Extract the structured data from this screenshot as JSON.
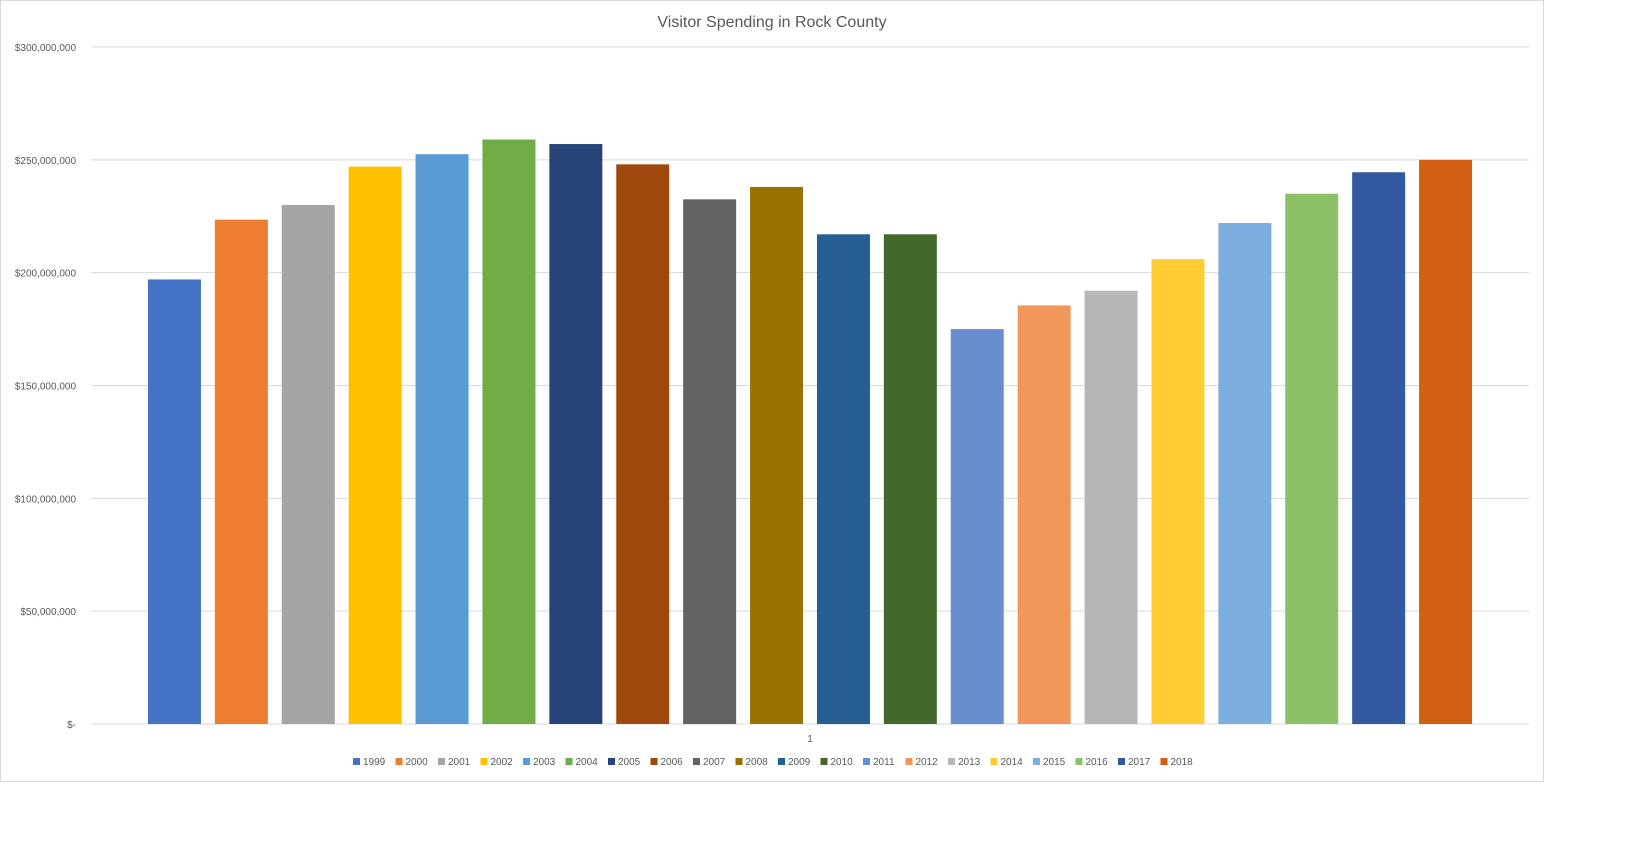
{
  "chart_data": {
    "type": "bar",
    "title": "Visitor Spending in Rock County",
    "categories": [
      "1"
    ],
    "series": [
      {
        "name": "1999",
        "values": [
          197000000
        ],
        "color": "#4472C4"
      },
      {
        "name": "2000",
        "values": [
          223500000
        ],
        "color": "#ED7D31"
      },
      {
        "name": "2001",
        "values": [
          230000000
        ],
        "color": "#A5A5A5"
      },
      {
        "name": "2002",
        "values": [
          247000000
        ],
        "color": "#FFC000"
      },
      {
        "name": "2003",
        "values": [
          252500000
        ],
        "color": "#5B9BD5"
      },
      {
        "name": "2004",
        "values": [
          259000000
        ],
        "color": "#70AD47"
      },
      {
        "name": "2005",
        "values": [
          257000000
        ],
        "color": "#264478"
      },
      {
        "name": "2006",
        "values": [
          248000000
        ],
        "color": "#9E480E"
      },
      {
        "name": "2007",
        "values": [
          232500000
        ],
        "color": "#636363"
      },
      {
        "name": "2008",
        "values": [
          238000000
        ],
        "color": "#997300"
      },
      {
        "name": "2009",
        "values": [
          217000000
        ],
        "color": "#255E91"
      },
      {
        "name": "2010",
        "values": [
          217000000
        ],
        "color": "#43682B"
      },
      {
        "name": "2011",
        "values": [
          175000000
        ],
        "color": "#698ED0"
      },
      {
        "name": "2012",
        "values": [
          185500000
        ],
        "color": "#F1975A"
      },
      {
        "name": "2013",
        "values": [
          192000000
        ],
        "color": "#B7B7B7"
      },
      {
        "name": "2014",
        "values": [
          206000000
        ],
        "color": "#FFCD33"
      },
      {
        "name": "2015",
        "values": [
          222000000
        ],
        "color": "#7CAFDD"
      },
      {
        "name": "2016",
        "values": [
          235000000
        ],
        "color": "#8CC168"
      },
      {
        "name": "2017",
        "values": [
          244500000
        ],
        "color": "#335AA1"
      },
      {
        "name": "2018",
        "values": [
          250000000
        ],
        "color": "#D26012"
      }
    ],
    "y_ticks": [
      {
        "value": 0,
        "label": "$-"
      },
      {
        "value": 50000000,
        "label": "$50,000,000"
      },
      {
        "value": 100000000,
        "label": "$100,000,000"
      },
      {
        "value": 150000000,
        "label": "$150,000,000"
      },
      {
        "value": 200000000,
        "label": "$200,000,000"
      },
      {
        "value": 250000000,
        "label": "$250,000,000"
      },
      {
        "value": 300000000,
        "label": "$300,000,000"
      }
    ],
    "ylim": [
      0,
      300000000
    ],
    "xlabel": "",
    "ylabel": "",
    "grid": true,
    "legend_position": "bottom"
  }
}
